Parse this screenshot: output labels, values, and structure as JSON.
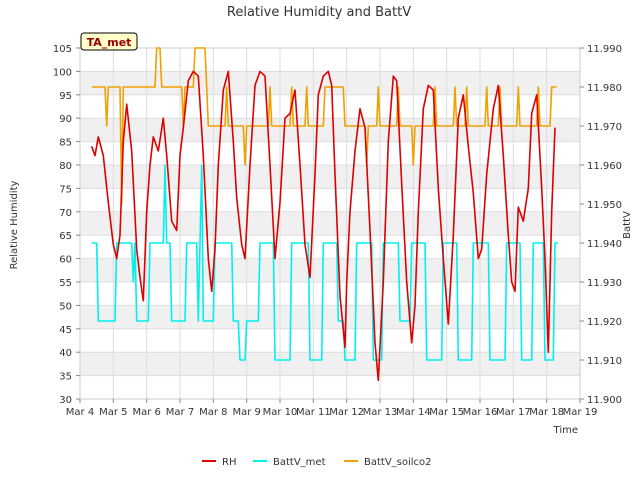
{
  "chart_data": {
    "type": "line",
    "title": "Relative Humidity and BattV",
    "xlabel": "Time",
    "ylabel": "Relative Humidity",
    "y2label": "BattV",
    "annotation": "TA_met",
    "xlim": [
      4,
      19
    ],
    "ylim": [
      30,
      105
    ],
    "y2lim": [
      11.9,
      11.99
    ],
    "x_ticks": [
      {
        "v": 4,
        "label": "Mar 4"
      },
      {
        "v": 5,
        "label": "Mar 5"
      },
      {
        "v": 6,
        "label": "Mar 6"
      },
      {
        "v": 7,
        "label": "Mar 7"
      },
      {
        "v": 8,
        "label": "Mar 8"
      },
      {
        "v": 9,
        "label": "Mar 9"
      },
      {
        "v": 10,
        "label": "Mar 10"
      },
      {
        "v": 11,
        "label": "Mar 11"
      },
      {
        "v": 12,
        "label": "Mar 12"
      },
      {
        "v": 13,
        "label": "Mar 13"
      },
      {
        "v": 14,
        "label": "Mar 14"
      },
      {
        "v": 15,
        "label": "Mar 15"
      },
      {
        "v": 16,
        "label": "Mar 16"
      },
      {
        "v": 17,
        "label": "Mar 17"
      },
      {
        "v": 18,
        "label": "Mar 18"
      },
      {
        "v": 19,
        "label": "Mar 19"
      }
    ],
    "y_ticks": [
      30,
      35,
      40,
      45,
      50,
      55,
      60,
      65,
      70,
      75,
      80,
      85,
      90,
      95,
      100,
      105
    ],
    "y2_ticks": [
      "11.900",
      "11.910",
      "11.920",
      "11.930",
      "11.940",
      "11.950",
      "11.960",
      "11.970",
      "11.980",
      "11.990"
    ],
    "grid": true,
    "legend_position": "bottom",
    "series": [
      {
        "name": "RH",
        "axis": "left",
        "color": "#dd0000",
        "x": [
          4.35,
          4.45,
          4.55,
          4.7,
          4.85,
          5.0,
          5.1,
          5.2,
          5.3,
          5.4,
          5.55,
          5.7,
          5.8,
          5.9,
          6.0,
          6.1,
          6.2,
          6.35,
          6.5,
          6.6,
          6.75,
          6.9,
          7.0,
          7.1,
          7.25,
          7.4,
          7.55,
          7.7,
          7.85,
          7.95,
          8.05,
          8.15,
          8.3,
          8.45,
          8.6,
          8.7,
          8.85,
          8.95,
          9.1,
          9.25,
          9.4,
          9.55,
          9.7,
          9.85,
          10.0,
          10.15,
          10.3,
          10.45,
          10.6,
          10.75,
          10.9,
          11.05,
          11.15,
          11.3,
          11.45,
          11.55,
          11.65,
          11.8,
          11.95,
          12.0,
          12.1,
          12.25,
          12.4,
          12.55,
          12.7,
          12.85,
          12.95,
          13.1,
          13.25,
          13.4,
          13.5,
          13.65,
          13.8,
          13.95,
          14.05,
          14.15,
          14.3,
          14.45,
          14.6,
          14.75,
          14.9,
          15.05,
          15.2,
          15.35,
          15.5,
          15.65,
          15.8,
          15.95,
          16.05,
          16.2,
          16.4,
          16.55,
          16.7,
          16.85,
          16.95,
          17.05,
          17.15,
          17.3,
          17.45,
          17.55,
          17.7,
          17.85,
          17.95,
          18.05,
          18.15,
          18.25
        ],
        "y": [
          84,
          82,
          86,
          82,
          72,
          63,
          60,
          65,
          85,
          93,
          83,
          62,
          56,
          51,
          70,
          80,
          86,
          83,
          90,
          82,
          68,
          66,
          82,
          88,
          98,
          100,
          99,
          82,
          60,
          53,
          62,
          80,
          96,
          100,
          85,
          73,
          63,
          60,
          80,
          97,
          100,
          99,
          80,
          60,
          72,
          90,
          91,
          96,
          80,
          63,
          56,
          78,
          95,
          99,
          100,
          97,
          78,
          52,
          41,
          55,
          70,
          83,
          92,
          88,
          66,
          42,
          34,
          55,
          85,
          99,
          98,
          76,
          55,
          42,
          50,
          70,
          92,
          97,
          96,
          75,
          60,
          46,
          65,
          90,
          95,
          84,
          74,
          60,
          62,
          78,
          92,
          97,
          82,
          65,
          55,
          53,
          71,
          68,
          75,
          91,
          95,
          75,
          60,
          40,
          70,
          88
        ]
      },
      {
        "name": "BattV_met",
        "axis": "right",
        "color": "#00f0f0",
        "x": [
          4.35,
          4.5,
          4.55,
          5.05,
          5.1,
          5.55,
          5.6,
          5.65,
          5.7,
          6.05,
          6.1,
          6.5,
          6.55,
          6.6,
          6.7,
          6.75,
          7.15,
          7.2,
          7.5,
          7.55,
          7.65,
          7.7,
          8.0,
          8.05,
          8.55,
          8.6,
          8.75,
          8.8,
          8.95,
          9.0,
          9.35,
          9.4,
          9.8,
          9.85,
          10.3,
          10.35,
          10.85,
          10.9,
          11.25,
          11.3,
          11.7,
          11.75,
          11.9,
          11.95,
          12.25,
          12.3,
          12.75,
          12.8,
          13.05,
          13.1,
          13.55,
          13.6,
          13.9,
          13.95,
          14.35,
          14.4,
          14.85,
          14.9,
          15.3,
          15.35,
          15.75,
          15.8,
          16.25,
          16.3,
          16.75,
          16.8,
          17.2,
          17.25,
          17.55,
          17.6,
          17.9,
          17.95,
          18.2,
          18.25,
          18.35
        ],
        "y": [
          11.94,
          11.94,
          11.92,
          11.92,
          11.94,
          11.94,
          11.93,
          11.94,
          11.92,
          11.92,
          11.94,
          11.94,
          11.96,
          11.94,
          11.94,
          11.92,
          11.92,
          11.94,
          11.94,
          11.92,
          11.96,
          11.92,
          11.92,
          11.94,
          11.94,
          11.92,
          11.92,
          11.91,
          11.91,
          11.92,
          11.92,
          11.94,
          11.94,
          11.91,
          11.91,
          11.94,
          11.94,
          11.91,
          11.91,
          11.94,
          11.94,
          11.92,
          11.92,
          11.91,
          11.91,
          11.94,
          11.94,
          11.91,
          11.91,
          11.94,
          11.94,
          11.92,
          11.92,
          11.94,
          11.94,
          11.91,
          11.91,
          11.94,
          11.94,
          11.91,
          11.91,
          11.94,
          11.94,
          11.91,
          11.91,
          11.94,
          11.94,
          11.91,
          11.91,
          11.94,
          11.94,
          11.91,
          11.91,
          11.94,
          11.94
        ]
      },
      {
        "name": "BattV_soilco2",
        "axis": "right",
        "color": "#f0a000",
        "x": [
          4.35,
          4.75,
          4.8,
          4.85,
          5.2,
          5.25,
          5.3,
          6.25,
          6.3,
          6.4,
          6.45,
          7.05,
          7.1,
          7.15,
          7.4,
          7.45,
          7.75,
          7.8,
          7.85,
          8.35,
          8.4,
          8.45,
          8.9,
          8.95,
          9.0,
          9.65,
          9.7,
          9.75,
          10.3,
          10.35,
          10.4,
          10.75,
          10.8,
          10.85,
          11.3,
          11.35,
          11.4,
          11.9,
          11.95,
          12.0,
          12.55,
          12.6,
          12.65,
          12.9,
          12.95,
          13.0,
          13.5,
          13.55,
          13.6,
          13.95,
          14.0,
          14.05,
          14.6,
          14.65,
          14.7,
          15.2,
          15.25,
          15.3,
          15.55,
          15.6,
          15.65,
          16.15,
          16.2,
          16.25,
          16.55,
          16.6,
          16.65,
          17.1,
          17.15,
          17.2,
          17.7,
          17.75,
          17.8,
          18.1,
          18.15,
          18.3
        ],
        "y": [
          11.98,
          11.98,
          11.97,
          11.98,
          11.98,
          11.95,
          11.98,
          11.98,
          11.99,
          11.99,
          11.98,
          11.98,
          11.97,
          11.98,
          11.98,
          11.99,
          11.99,
          11.98,
          11.97,
          11.97,
          11.98,
          11.97,
          11.97,
          11.96,
          11.97,
          11.97,
          11.98,
          11.97,
          11.97,
          11.98,
          11.97,
          11.97,
          11.98,
          11.97,
          11.97,
          11.98,
          11.98,
          11.98,
          11.97,
          11.97,
          11.97,
          11.96,
          11.97,
          11.97,
          11.98,
          11.97,
          11.97,
          11.98,
          11.97,
          11.97,
          11.96,
          11.97,
          11.97,
          11.98,
          11.97,
          11.97,
          11.98,
          11.97,
          11.97,
          11.98,
          11.97,
          11.97,
          11.98,
          11.97,
          11.97,
          11.98,
          11.97,
          11.97,
          11.98,
          11.97,
          11.97,
          11.98,
          11.97,
          11.97,
          11.98,
          11.98
        ]
      }
    ]
  }
}
